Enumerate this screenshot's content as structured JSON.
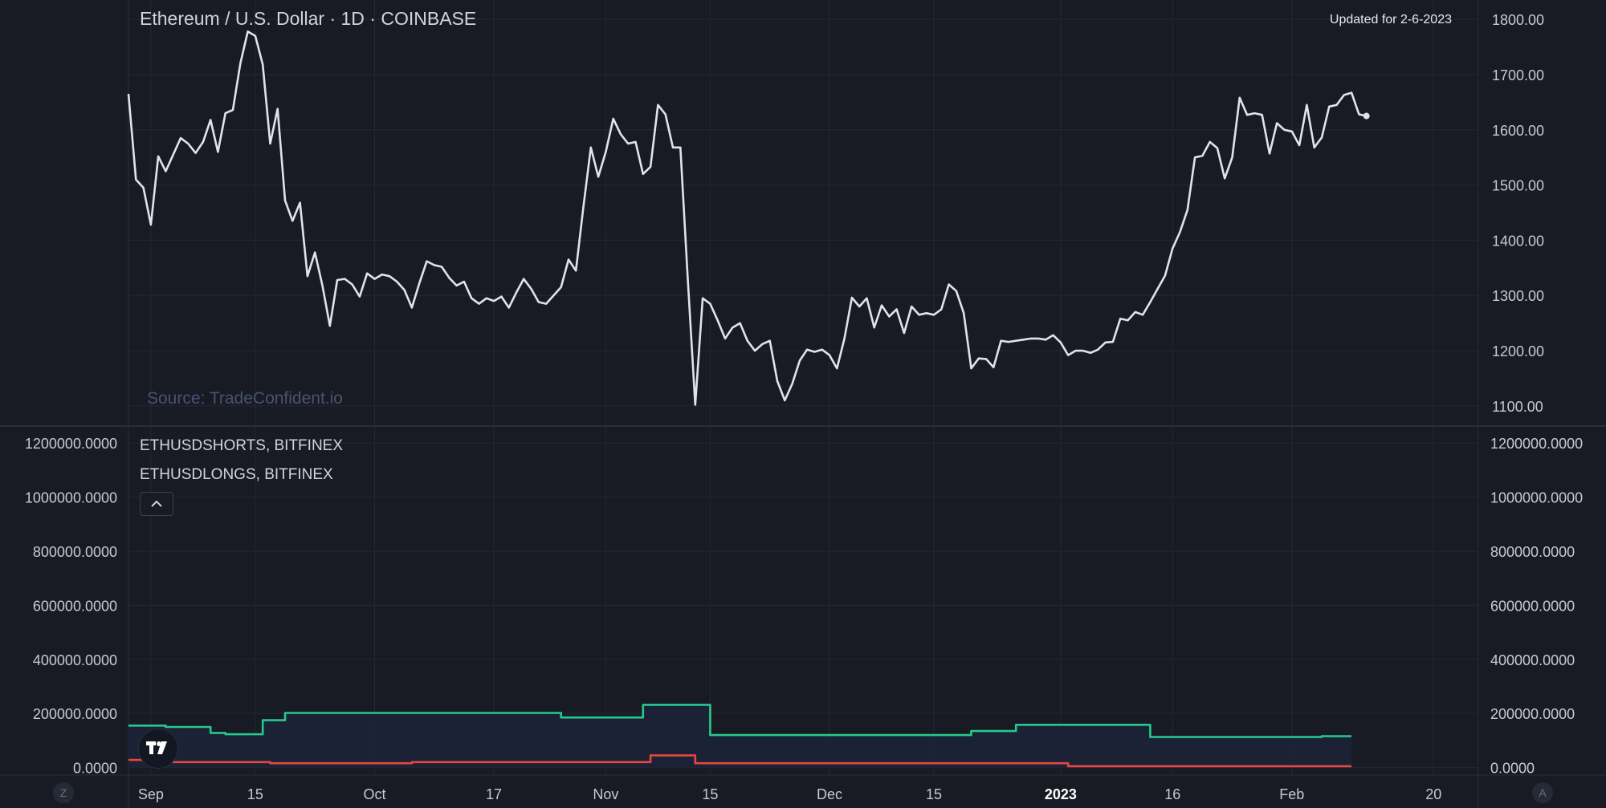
{
  "header": {
    "title": "Ethereum / U.S. Dollar · 1D · COINBASE",
    "updated": "Updated for 2-6-2023",
    "source": "Source: TradeConfident.io"
  },
  "legend": {
    "shorts": "ETHUSDSHORTS, BITFINEX",
    "longs": "ETHUSDLONGS, BITFINEX",
    "collapse_icon": "chevron-up-icon"
  },
  "corners": {
    "left": "Z",
    "right": "A"
  },
  "colors": {
    "background": "#181b24",
    "price_line": "#e1e3e8",
    "longs_line": "#26c98c",
    "shorts_line": "#e8463e",
    "area_fill": "#1c2338",
    "grid": "#242834",
    "axis_text": "#c8cad0"
  },
  "chart_data": [
    {
      "type": "line",
      "title": "Ethereum / U.S. Dollar · 1D · COINBASE",
      "x_range": [
        "2022-08-29",
        "2023-02-26"
      ],
      "x_start": "2022-08-29",
      "ylim": [
        1065,
        1835
      ],
      "yticks": [
        "1800.00",
        "1700.00",
        "1600.00",
        "1500.00",
        "1400.00",
        "1300.00",
        "1200.00",
        "1100.00"
      ],
      "ytick_values": [
        1800,
        1700,
        1600,
        1500,
        1400,
        1300,
        1200,
        1100
      ],
      "series": [
        {
          "values": [
            1665,
            1510,
            1495,
            1428,
            1552,
            1525,
            1555,
            1585,
            1575,
            1558,
            1578,
            1618,
            1560,
            1630,
            1636,
            1720,
            1778,
            1770,
            1718,
            1575,
            1638,
            1472,
            1435,
            1468,
            1335,
            1378,
            1318,
            1245,
            1328,
            1330,
            1320,
            1298,
            1340,
            1330,
            1338,
            1335,
            1325,
            1310,
            1278,
            1322,
            1362,
            1355,
            1352,
            1332,
            1318,
            1325,
            1295,
            1285,
            1295,
            1290,
            1298,
            1278,
            1305,
            1330,
            1312,
            1288,
            1285,
            1300,
            1315,
            1365,
            1345,
            1460,
            1568,
            1515,
            1560,
            1620,
            1592,
            1575,
            1578,
            1520,
            1533,
            1645,
            1628,
            1568,
            1568,
            1330,
            1102,
            1295,
            1285,
            1255,
            1222,
            1242,
            1250,
            1218,
            1200,
            1212,
            1218,
            1145,
            1110,
            1140,
            1182,
            1202,
            1198,
            1202,
            1192,
            1168,
            1222,
            1296,
            1280,
            1295,
            1242,
            1282,
            1262,
            1275,
            1232,
            1280,
            1265,
            1268,
            1265,
            1275,
            1320,
            1308,
            1268,
            1168,
            1186,
            1185,
            1170,
            1218,
            1216,
            1218,
            1220,
            1222,
            1222,
            1220,
            1228,
            1215,
            1192,
            1200,
            1200,
            1196,
            1202,
            1215,
            1216,
            1258,
            1255,
            1270,
            1265,
            1288,
            1312,
            1336,
            1385,
            1415,
            1455,
            1550,
            1553,
            1578,
            1567,
            1512,
            1550,
            1658,
            1627,
            1630,
            1627,
            1557,
            1612,
            1600,
            1597,
            1572,
            1645,
            1568,
            1586,
            1642,
            1645,
            1663,
            1667,
            1628,
            1625
          ]
        }
      ]
    },
    {
      "type": "area",
      "x_range": [
        "2022-08-29",
        "2023-02-26"
      ],
      "x_start": "2022-08-29",
      "ylim": [
        -25000,
        1260000
      ],
      "yticks": [
        "1200000.0000",
        "1000000.0000",
        "800000.0000",
        "600000.0000",
        "400000.0000",
        "200000.0000",
        "0.0000"
      ],
      "ytick_values": [
        1200000,
        1000000,
        800000,
        600000,
        400000,
        200000,
        0
      ],
      "xticks": [
        {
          "date": "2022-09-01",
          "label": "Sep",
          "bold": false
        },
        {
          "date": "2022-09-15",
          "label": "15",
          "bold": false
        },
        {
          "date": "2022-10-01",
          "label": "Oct",
          "bold": false
        },
        {
          "date": "2022-10-17",
          "label": "17",
          "bold": false
        },
        {
          "date": "2022-11-01",
          "label": "Nov",
          "bold": false
        },
        {
          "date": "2022-11-15",
          "label": "15",
          "bold": false
        },
        {
          "date": "2022-12-01",
          "label": "Dec",
          "bold": false
        },
        {
          "date": "2022-12-15",
          "label": "15",
          "bold": false
        },
        {
          "date": "2023-01-01",
          "label": "2023",
          "bold": true
        },
        {
          "date": "2023-01-16",
          "label": "16",
          "bold": false
        },
        {
          "date": "2023-02-01",
          "label": "Feb",
          "bold": false
        },
        {
          "date": "2023-02-20",
          "label": "20",
          "bold": false
        }
      ],
      "series": [
        {
          "name": "ETHUSDLONGS, BITFINEX",
          "segments": [
            {
              "from": "2022-08-29",
              "to": "2022-09-02",
              "value": 155000
            },
            {
              "from": "2022-09-03",
              "to": "2022-09-08",
              "value": 150000
            },
            {
              "from": "2022-09-09",
              "to": "2022-09-10",
              "value": 128000
            },
            {
              "from": "2022-09-11",
              "to": "2022-09-15",
              "value": 123000
            },
            {
              "from": "2022-09-16",
              "to": "2022-09-18",
              "value": 175000
            },
            {
              "from": "2022-09-19",
              "to": "2022-10-25",
              "value": 202000
            },
            {
              "from": "2022-10-26",
              "to": "2022-11-05",
              "value": 185000
            },
            {
              "from": "2022-11-06",
              "to": "2022-11-14",
              "value": 232000
            },
            {
              "from": "2022-11-15",
              "to": "2022-12-19",
              "value": 120000
            },
            {
              "from": "2022-12-20",
              "to": "2022-12-25",
              "value": 135000
            },
            {
              "from": "2022-12-26",
              "to": "2023-01-12",
              "value": 158000
            },
            {
              "from": "2023-01-13",
              "to": "2023-02-04",
              "value": 113000
            },
            {
              "from": "2023-02-05",
              "to": "2023-02-08",
              "value": 116000
            }
          ]
        },
        {
          "name": "ETHUSDSHORTS, BITFINEX",
          "segments": [
            {
              "from": "2022-08-29",
              "to": "2022-09-03",
              "value": 28000
            },
            {
              "from": "2022-09-04",
              "to": "2022-09-16",
              "value": 20000
            },
            {
              "from": "2022-09-17",
              "to": "2022-10-05",
              "value": 16000
            },
            {
              "from": "2022-10-06",
              "to": "2022-11-06",
              "value": 20000
            },
            {
              "from": "2022-11-07",
              "to": "2022-11-12",
              "value": 45000
            },
            {
              "from": "2022-11-13",
              "to": "2023-01-01",
              "value": 16000
            },
            {
              "from": "2023-01-02",
              "to": "2023-02-08",
              "value": 5000
            }
          ]
        }
      ]
    }
  ]
}
